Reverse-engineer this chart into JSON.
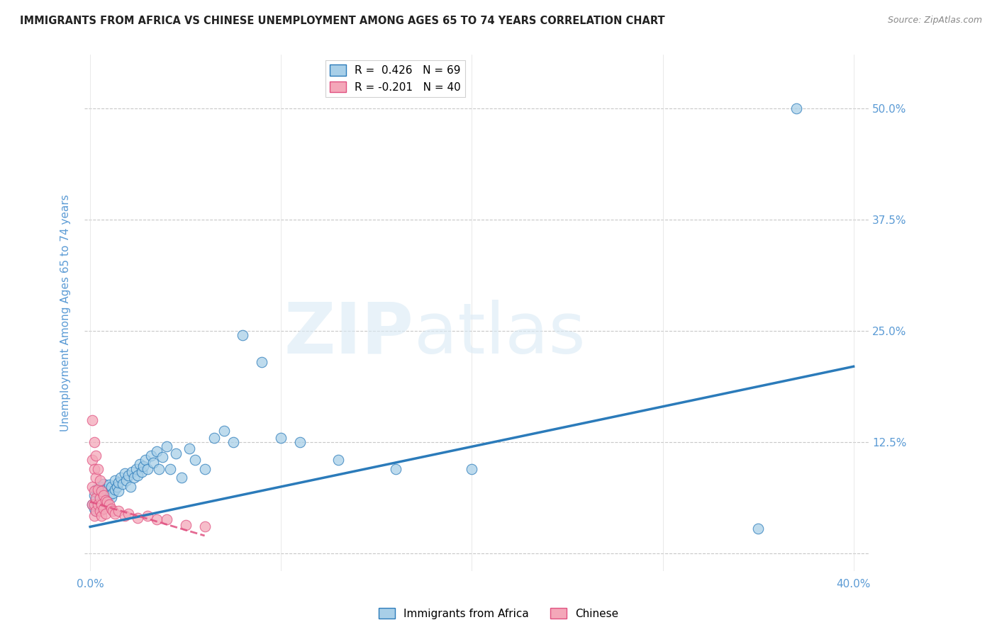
{
  "title": "IMMIGRANTS FROM AFRICA VS CHINESE UNEMPLOYMENT AMONG AGES 65 TO 74 YEARS CORRELATION CHART",
  "source": "Source: ZipAtlas.com",
  "ylabel": "Unemployment Among Ages 65 to 74 years",
  "legend_label1": "Immigrants from Africa",
  "legend_label2": "Chinese",
  "R1": 0.426,
  "N1": 69,
  "R2": -0.201,
  "N2": 40,
  "xlim": [
    -0.003,
    0.408
  ],
  "ylim": [
    -0.02,
    0.56
  ],
  "ytick_positions": [
    0.0,
    0.125,
    0.25,
    0.375,
    0.5
  ],
  "ytick_labels": [
    "",
    "12.5%",
    "25.0%",
    "37.5%",
    "50.0%"
  ],
  "xtick_positions": [
    0.0,
    0.1,
    0.2,
    0.3,
    0.4
  ],
  "xtick_labels": [
    "0.0%",
    "",
    "",
    "",
    "40.0%"
  ],
  "blue_color": "#a8cfe8",
  "pink_color": "#f4a7b9",
  "line_blue": "#2b7bba",
  "line_pink": "#e05080",
  "blue_x": [
    0.001,
    0.002,
    0.002,
    0.003,
    0.003,
    0.003,
    0.004,
    0.004,
    0.005,
    0.005,
    0.005,
    0.006,
    0.006,
    0.007,
    0.007,
    0.007,
    0.008,
    0.008,
    0.009,
    0.009,
    0.01,
    0.01,
    0.011,
    0.011,
    0.012,
    0.013,
    0.013,
    0.014,
    0.015,
    0.015,
    0.016,
    0.017,
    0.018,
    0.019,
    0.02,
    0.021,
    0.022,
    0.023,
    0.024,
    0.025,
    0.026,
    0.027,
    0.028,
    0.029,
    0.03,
    0.032,
    0.033,
    0.035,
    0.036,
    0.038,
    0.04,
    0.042,
    0.045,
    0.048,
    0.052,
    0.055,
    0.06,
    0.065,
    0.07,
    0.075,
    0.08,
    0.09,
    0.1,
    0.11,
    0.13,
    0.16,
    0.2,
    0.35,
    0.37
  ],
  "blue_y": [
    0.055,
    0.05,
    0.065,
    0.048,
    0.06,
    0.072,
    0.055,
    0.068,
    0.052,
    0.063,
    0.075,
    0.058,
    0.07,
    0.055,
    0.067,
    0.078,
    0.06,
    0.072,
    0.058,
    0.07,
    0.065,
    0.077,
    0.063,
    0.075,
    0.068,
    0.072,
    0.082,
    0.075,
    0.07,
    0.08,
    0.085,
    0.078,
    0.09,
    0.082,
    0.088,
    0.075,
    0.092,
    0.085,
    0.095,
    0.088,
    0.1,
    0.092,
    0.098,
    0.105,
    0.095,
    0.11,
    0.102,
    0.115,
    0.095,
    0.108,
    0.12,
    0.095,
    0.112,
    0.085,
    0.118,
    0.105,
    0.095,
    0.13,
    0.138,
    0.125,
    0.245,
    0.215,
    0.13,
    0.125,
    0.105,
    0.095,
    0.095,
    0.028,
    0.5
  ],
  "pink_x": [
    0.001,
    0.001,
    0.001,
    0.001,
    0.002,
    0.002,
    0.002,
    0.002,
    0.002,
    0.003,
    0.003,
    0.003,
    0.003,
    0.004,
    0.004,
    0.004,
    0.005,
    0.005,
    0.005,
    0.006,
    0.006,
    0.006,
    0.007,
    0.007,
    0.008,
    0.008,
    0.009,
    0.01,
    0.011,
    0.012,
    0.013,
    0.015,
    0.018,
    0.02,
    0.025,
    0.03,
    0.035,
    0.04,
    0.05,
    0.06
  ],
  "pink_y": [
    0.15,
    0.105,
    0.075,
    0.055,
    0.125,
    0.095,
    0.07,
    0.055,
    0.042,
    0.11,
    0.085,
    0.062,
    0.048,
    0.095,
    0.072,
    0.055,
    0.082,
    0.062,
    0.048,
    0.07,
    0.055,
    0.042,
    0.065,
    0.05,
    0.06,
    0.045,
    0.058,
    0.055,
    0.05,
    0.048,
    0.045,
    0.048,
    0.042,
    0.045,
    0.04,
    0.042,
    0.038,
    0.038,
    0.032,
    0.03
  ],
  "blue_trendline_x": [
    0.0,
    0.4
  ],
  "blue_trendline_y": [
    0.03,
    0.21
  ],
  "pink_trendline_x": [
    0.0,
    0.06
  ],
  "pink_trendline_y": [
    0.058,
    0.02
  ]
}
